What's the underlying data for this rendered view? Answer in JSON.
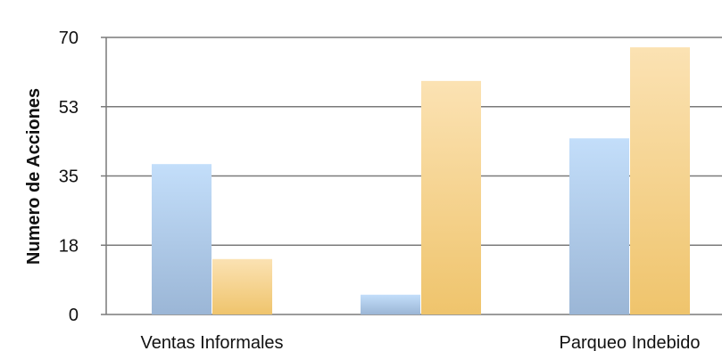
{
  "chart_data": {
    "type": "bar",
    "title": "",
    "xlabel": "",
    "ylabel": "Numero de Acciones",
    "ylim": [
      0,
      70
    ],
    "yticks": [
      {
        "value": 0,
        "label": "0"
      },
      {
        "value": 17.5,
        "label": "18"
      },
      {
        "value": 35,
        "label": "35"
      },
      {
        "value": 52.5,
        "label": "53"
      },
      {
        "value": 70,
        "label": "70"
      }
    ],
    "categories": [
      "Ventas Informales",
      "",
      "Parqueo Indebido"
    ],
    "series": [
      {
        "color": "#a9c4e2",
        "values": [
          38,
          5,
          44.5
        ]
      },
      {
        "color": "#f2cf86",
        "values": [
          14,
          59,
          67.5
        ]
      }
    ],
    "grid": true,
    "legend": "none"
  }
}
